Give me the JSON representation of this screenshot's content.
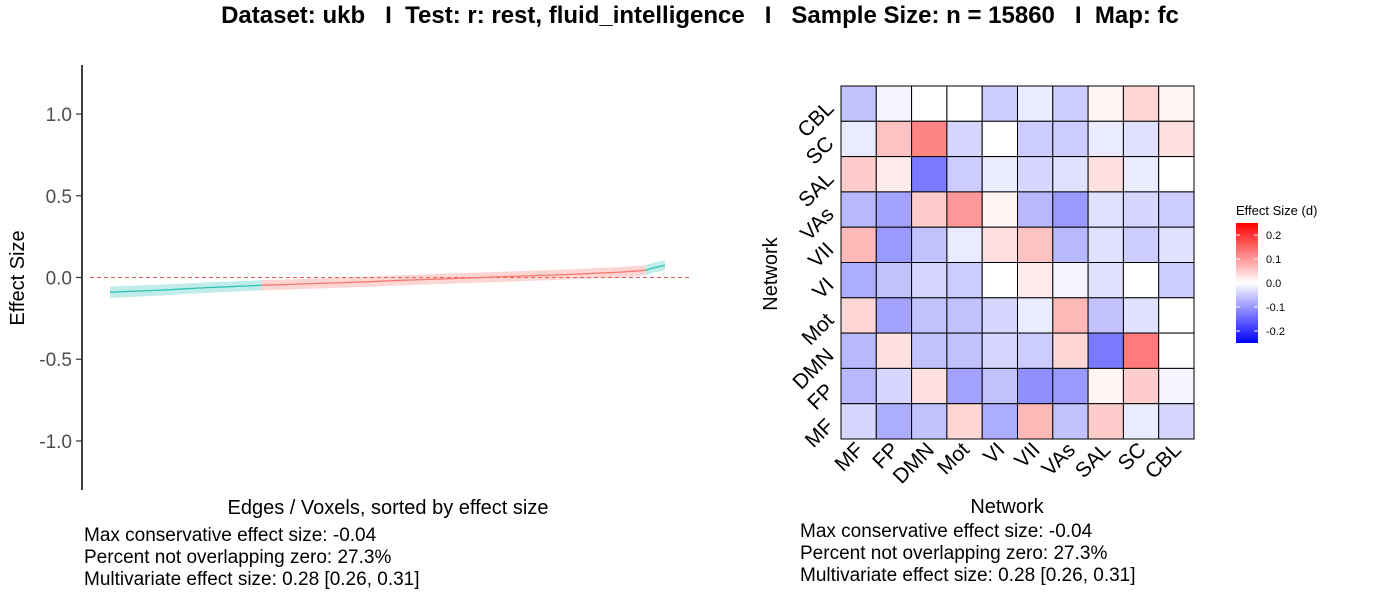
{
  "header": {
    "title": "Dataset: ukb   I  Test: r: rest, fluid_intelligence   I   Sample Size: n = 15860   I  Map: fc"
  },
  "colors": {
    "below_zero_series": "#2ec4b6",
    "overlapping_zero_series": "#f8766d",
    "zero_line": "#e05a4f",
    "heatmap_negative": "#0000ff",
    "heatmap_zero": "#ffffff",
    "heatmap_positive": "#ff0000"
  },
  "chart_data": [
    {
      "type": "line",
      "title": "",
      "xlabel": "Edges / Voxels, sorted by effect size",
      "ylabel": "Effect Size",
      "ylim": [
        -1.3,
        1.3
      ],
      "yticks": [
        "1.0",
        "0.5",
        "0.0",
        "-0.5",
        "-1.0"
      ],
      "ytick_values": [
        1.0,
        0.5,
        0.0,
        -0.5,
        -1.0
      ],
      "reference_line": 0,
      "grid": false,
      "series": [
        {
          "x": [
            0,
            0.035,
            0.07,
            0.105,
            0.14,
            0.175,
            0.21,
            0.245,
            0.27,
            0.273
          ],
          "y": [
            -0.09,
            -0.085,
            -0.08,
            -0.075,
            -0.068,
            -0.062,
            -0.057,
            -0.052,
            -0.048,
            -0.047
          ],
          "lower": [
            -0.125,
            -0.12,
            -0.114,
            -0.108,
            -0.1,
            -0.094,
            -0.088,
            -0.083,
            -0.079,
            -0.078
          ],
          "upper": [
            -0.055,
            -0.05,
            -0.046,
            -0.042,
            -0.036,
            -0.03,
            -0.026,
            -0.021,
            -0.017,
            -0.016
          ]
        },
        {
          "x": [
            0.273,
            0.32,
            0.37,
            0.42,
            0.47,
            0.52,
            0.57,
            0.62,
            0.67,
            0.72,
            0.77,
            0.82,
            0.87,
            0.92,
            0.95,
            0.965
          ],
          "y": [
            -0.047,
            -0.043,
            -0.037,
            -0.031,
            -0.025,
            -0.018,
            -0.012,
            -0.006,
            0.0,
            0.006,
            0.012,
            0.018,
            0.025,
            0.033,
            0.04,
            0.045
          ],
          "lower": [
            -0.078,
            -0.074,
            -0.068,
            -0.062,
            -0.056,
            -0.049,
            -0.043,
            -0.037,
            -0.031,
            -0.025,
            -0.019,
            -0.013,
            -0.006,
            0.002,
            0.009,
            0.014
          ],
          "upper": [
            -0.016,
            -0.012,
            -0.006,
            0.0,
            0.006,
            0.013,
            0.019,
            0.025,
            0.031,
            0.037,
            0.043,
            0.049,
            0.056,
            0.064,
            0.071,
            0.076
          ]
        },
        {
          "x": [
            0.965,
            0.98,
            1.0
          ],
          "y": [
            0.045,
            0.06,
            0.075
          ],
          "lower": [
            0.014,
            0.03,
            0.045
          ],
          "upper": [
            0.076,
            0.09,
            0.105
          ]
        }
      ]
    },
    {
      "type": "heatmap",
      "title": "",
      "xlabel": "Network",
      "ylabel": "Network",
      "x_categories": [
        "MF",
        "FP",
        "DMN",
        "Mot",
        "VI",
        "VII",
        "VAs",
        "SAL",
        "SC",
        "CBL"
      ],
      "y_categories_top_to_bottom": [
        "CBL",
        "SC",
        "SAL",
        "VAs",
        "VII",
        "VI",
        "Mot",
        "DMN",
        "FP",
        "MF"
      ],
      "values": [
        [
          -0.06,
          -0.01,
          0.0,
          0.0,
          -0.05,
          -0.02,
          -0.05,
          0.01,
          0.04,
          0.01
        ],
        [
          -0.02,
          0.06,
          0.12,
          -0.04,
          0.0,
          -0.05,
          -0.05,
          -0.02,
          -0.03,
          0.03
        ],
        [
          0.05,
          0.02,
          -0.13,
          -0.05,
          -0.02,
          -0.04,
          -0.03,
          0.03,
          -0.02,
          0.0
        ],
        [
          -0.07,
          -0.09,
          0.05,
          0.1,
          0.01,
          -0.07,
          -0.1,
          -0.03,
          -0.04,
          -0.05
        ],
        [
          0.07,
          -0.1,
          -0.06,
          -0.02,
          0.03,
          0.06,
          -0.07,
          -0.03,
          -0.05,
          -0.03
        ],
        [
          -0.08,
          -0.06,
          -0.04,
          -0.05,
          0.0,
          0.02,
          -0.01,
          -0.03,
          0.0,
          -0.05
        ],
        [
          0.04,
          -0.09,
          -0.06,
          -0.06,
          -0.04,
          -0.02,
          0.07,
          -0.06,
          -0.03,
          0.0
        ],
        [
          -0.07,
          0.03,
          -0.06,
          -0.06,
          -0.04,
          -0.05,
          0.04,
          -0.13,
          0.13,
          0.0
        ],
        [
          -0.07,
          -0.04,
          0.03,
          -0.09,
          -0.06,
          -0.11,
          -0.1,
          0.01,
          0.05,
          -0.01
        ],
        [
          -0.04,
          -0.08,
          -0.06,
          0.04,
          -0.08,
          0.07,
          -0.06,
          0.05,
          -0.02,
          -0.04
        ]
      ],
      "legend": {
        "title": "Effect Size (d)",
        "ticks": [
          "0.2",
          "0.1",
          "0.0",
          "-0.1",
          "-0.2"
        ],
        "tick_values": [
          0.2,
          0.1,
          0.0,
          -0.1,
          -0.2
        ],
        "range": [
          -0.25,
          0.25
        ],
        "placement": "right"
      }
    }
  ],
  "stats_left": {
    "line1": "Max conservative effect size: -0.04",
    "line2": "Percent not overlapping zero: 27.3%",
    "line3": "Multivariate effect size: 0.28 [0.26, 0.31]"
  },
  "stats_right": {
    "line1": "Max conservative effect size: -0.04",
    "line2": "Percent not overlapping zero: 27.3%",
    "line3": "Multivariate effect size: 0.28 [0.26, 0.31]"
  }
}
